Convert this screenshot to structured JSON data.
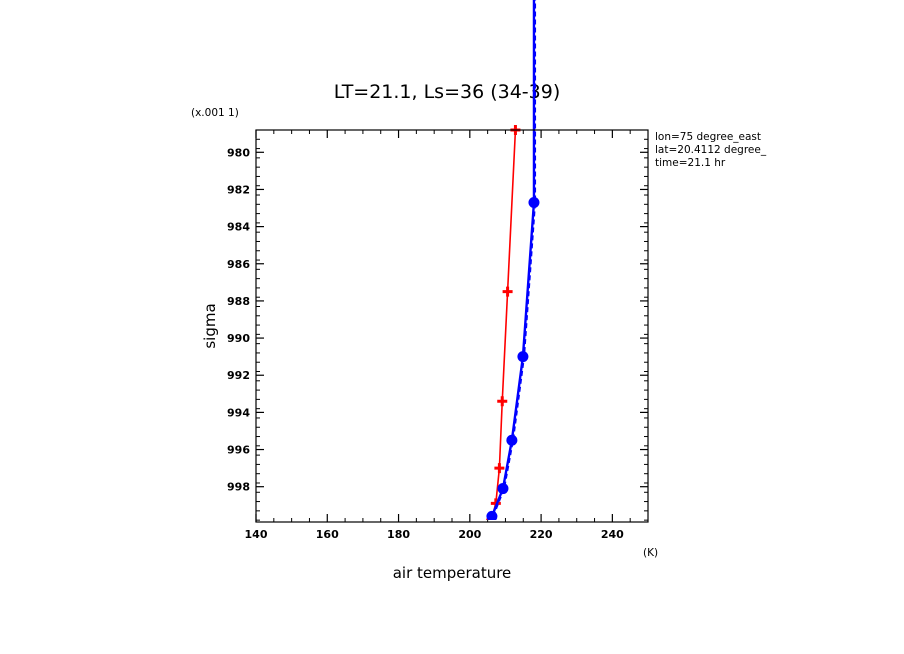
{
  "chart_data": {
    "type": "line",
    "title": "LT=21.1, Ls=36 (34-39)",
    "xlabel": "air temperature",
    "ylabel": "sigma",
    "x_units": "(K)",
    "y_scale_note": "(x.001 1)",
    "xlim": [
      140,
      250
    ],
    "ylim": [
      0.9999,
      0.9788
    ],
    "y_inverted": true,
    "x_ticks": [
      140,
      160,
      180,
      200,
      220,
      240
    ],
    "x_tick_labels": [
      "140",
      "160",
      "180",
      "200",
      "220",
      "240"
    ],
    "y_ticks": [
      0.98,
      0.982,
      0.984,
      0.986,
      0.988,
      0.99,
      0.992,
      0.994,
      0.996,
      0.998
    ],
    "y_tick_labels": [
      "980",
      "982",
      "984",
      "986",
      "988",
      "990",
      "992",
      "994",
      "996",
      "998"
    ],
    "annotations": [
      "lon=75 degree_east",
      "lat=20.4112 degree_",
      "time=21.1 hr"
    ],
    "series": [
      {
        "color": "#ff0000",
        "marker": "plus",
        "points": [
          {
            "x": 206.0,
            "y": 0.9998
          },
          {
            "x": 207.3,
            "y": 0.9989
          },
          {
            "x": 208.3,
            "y": 0.997
          },
          {
            "x": 209.1,
            "y": 0.9934
          },
          {
            "x": 210.6,
            "y": 0.9875
          },
          {
            "x": 212.8,
            "y": 0.9788
          }
        ]
      },
      {
        "color": "#0000ff",
        "marker": "circle",
        "points": [
          {
            "x": 206.2,
            "y": 0.9996
          },
          {
            "x": 209.3,
            "y": 0.9981
          },
          {
            "x": 211.8,
            "y": 0.9955
          },
          {
            "x": 214.9,
            "y": 0.991
          },
          {
            "x": 218.0,
            "y": 0.9827
          },
          {
            "x": 218.0,
            "y": 0.967
          }
        ]
      }
    ]
  }
}
